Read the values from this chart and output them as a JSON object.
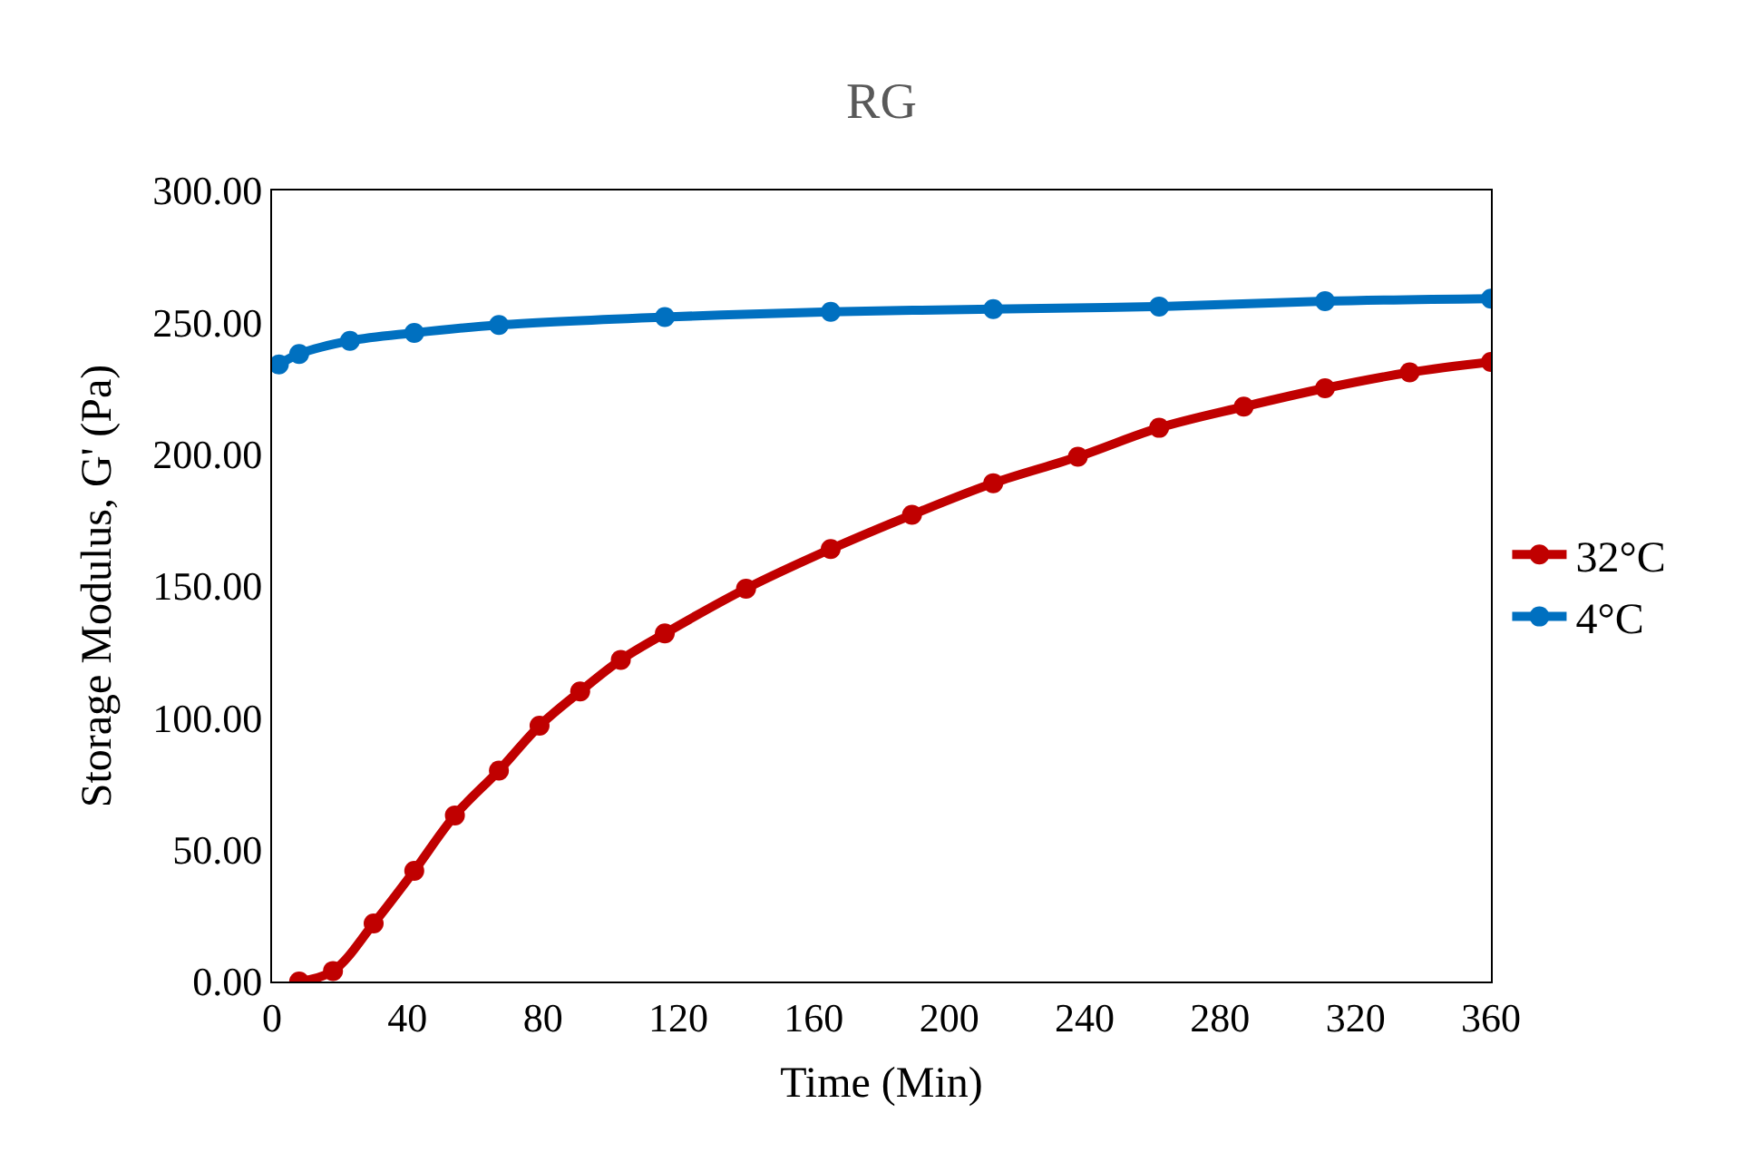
{
  "chart_data": {
    "type": "line",
    "title": "RG",
    "xlabel": "Time (Min)",
    "ylabel": "Storage Modulus, G' (Pa)",
    "xlim": [
      0,
      360
    ],
    "xticks": [
      0,
      40,
      80,
      120,
      160,
      200,
      240,
      280,
      320,
      360
    ],
    "ylim": [
      0,
      300
    ],
    "yticks": [
      {
        "value": 0,
        "label": "0.00"
      },
      {
        "value": 50,
        "label": "50.00"
      },
      {
        "value": 100,
        "label": "100.00"
      },
      {
        "value": 150,
        "label": "150.00"
      },
      {
        "value": 200,
        "label": "200.00"
      },
      {
        "value": 250,
        "label": "250.00"
      },
      {
        "value": 300,
        "label": "300.00"
      }
    ],
    "legend": "right",
    "marker": "circle",
    "line_style": "solid",
    "series": [
      {
        "name": "32°C",
        "color": "#c00000",
        "x": [
          8,
          18,
          30,
          42,
          54,
          67,
          79,
          91,
          103,
          116,
          140,
          165,
          189,
          213,
          238,
          262,
          287,
          311,
          336,
          360
        ],
        "values": [
          0,
          4,
          22,
          42,
          63,
          80,
          97,
          110,
          122,
          132,
          149,
          164,
          177,
          189,
          199,
          210,
          218,
          225,
          231,
          235
        ]
      },
      {
        "name": "4°C",
        "color": "#0070c0",
        "x": [
          2,
          8,
          23,
          42,
          67,
          116,
          165,
          213,
          262,
          311,
          360
        ],
        "values": [
          234,
          238,
          243,
          246,
          249,
          252,
          254,
          255,
          256,
          258,
          259
        ]
      }
    ]
  }
}
